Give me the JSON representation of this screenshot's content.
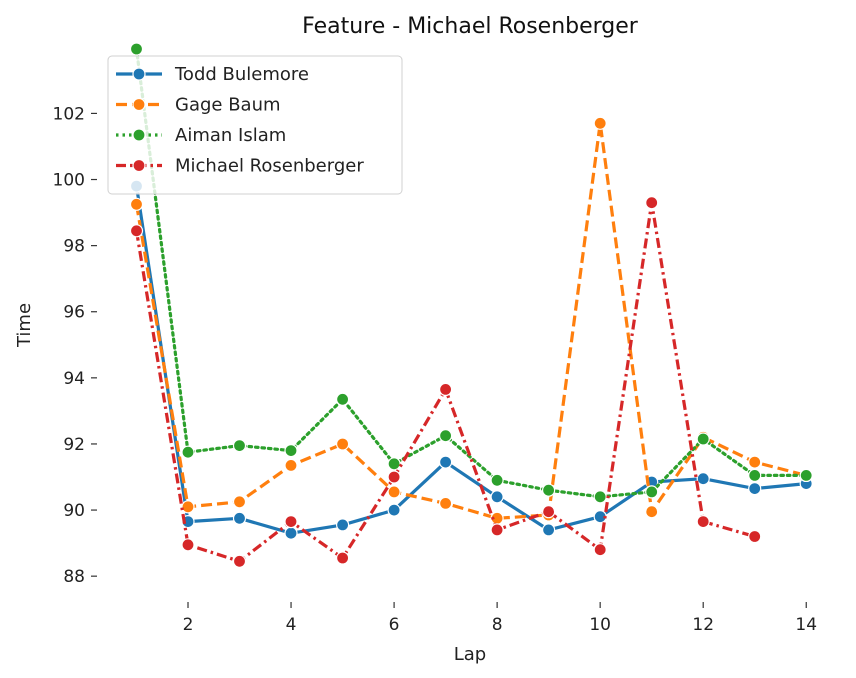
{
  "chart_data": {
    "type": "line",
    "title": "Feature - Michael Rosenberger",
    "xlabel": "Lap",
    "ylabel": "Time",
    "xlim": [
      0.35,
      14.5
    ],
    "ylim": [
      87.4,
      104.1
    ],
    "xticks": [
      2,
      4,
      6,
      8,
      10,
      12,
      14
    ],
    "yticks": [
      88,
      90,
      92,
      94,
      96,
      98,
      100,
      102
    ],
    "grid": false,
    "legend_position": "top-left",
    "series": [
      {
        "name": "Todd Bulemore",
        "color": "#1f77b4",
        "dash": "solid",
        "x": [
          1,
          2,
          3,
          4,
          5,
          6,
          7,
          8,
          9,
          10,
          11,
          12,
          13,
          14
        ],
        "y": [
          99.8,
          89.65,
          89.75,
          89.3,
          89.55,
          90.0,
          91.45,
          90.4,
          89.4,
          89.8,
          90.85,
          90.95,
          90.65,
          90.8
        ]
      },
      {
        "name": "Gage Baum",
        "color": "#ff7f0e",
        "dash": "dashed",
        "x": [
          1,
          2,
          3,
          4,
          5,
          6,
          7,
          8,
          9,
          10,
          11,
          12,
          13,
          14
        ],
        "y": [
          99.25,
          90.1,
          90.25,
          91.35,
          92.0,
          90.55,
          90.2,
          89.75,
          89.85,
          101.7,
          89.95,
          92.2,
          91.45,
          91.05
        ]
      },
      {
        "name": "Aiman Islam",
        "color": "#2ca02c",
        "dash": "dotted",
        "x": [
          1,
          2,
          3,
          4,
          5,
          6,
          7,
          8,
          9,
          10,
          11,
          12,
          13,
          14
        ],
        "y": [
          103.95,
          91.75,
          91.95,
          91.8,
          93.35,
          91.4,
          92.25,
          90.9,
          90.6,
          90.4,
          90.55,
          92.15,
          91.05,
          91.05
        ]
      },
      {
        "name": "Michael Rosenberger",
        "color": "#d62728",
        "dash": "dashdot",
        "x": [
          1,
          2,
          3,
          4,
          5,
          6,
          7,
          8,
          9,
          10,
          11,
          12,
          13
        ],
        "y": [
          98.45,
          88.95,
          88.45,
          89.65,
          88.55,
          91.0,
          93.65,
          89.4,
          89.95,
          88.8,
          99.3,
          89.65,
          89.2
        ]
      }
    ]
  }
}
